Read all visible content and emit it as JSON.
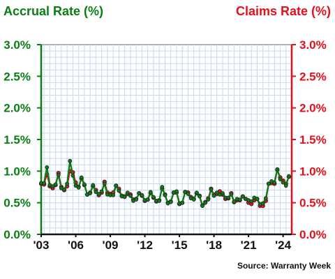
{
  "colors": {
    "accrual": "#0b7d15",
    "claims": "#e4101b",
    "grid": "#c7d8f0",
    "plot_border": "#666666",
    "text_dark": "#111111"
  },
  "chart_data": {
    "type": "line",
    "title_left": "Accrual Rate (%)",
    "title_right": "Claims Rate (%)",
    "source": "Source: Warranty Week",
    "ylim": [
      0,
      3.0
    ],
    "xlim": [
      2003,
      2024.75
    ],
    "grid": true,
    "legend": "none",
    "y_ticks_left": [
      "0.0%",
      "0.5%",
      "1.0%",
      "1.5%",
      "2.0%",
      "2.5%",
      "3.0%"
    ],
    "y_ticks_right": [
      "0.0%",
      "0.5%",
      "1.0%",
      "1.5%",
      "2.0%",
      "2.5%",
      "3.0%"
    ],
    "x_ticks": [
      "'03",
      "'06",
      "'09",
      "'12",
      "'15",
      "'18",
      "'21",
      "'24"
    ],
    "series": [
      {
        "key": "accrual",
        "color_key": "accrual",
        "x": [
          2003.0,
          2003.25,
          2003.5,
          2003.75,
          2004.0,
          2004.25,
          2004.5,
          2004.75,
          2005.0,
          2005.25,
          2005.5,
          2005.75,
          2006.0,
          2006.25,
          2006.5,
          2006.75,
          2007.0,
          2007.25,
          2007.5,
          2007.75,
          2008.0,
          2008.25,
          2008.5,
          2008.75,
          2009.0,
          2009.25,
          2009.5,
          2009.75,
          2010.0,
          2010.25,
          2010.5,
          2010.75,
          2011.0,
          2011.25,
          2011.5,
          2011.75,
          2012.0,
          2012.25,
          2012.5,
          2012.75,
          2013.0,
          2013.25,
          2013.5,
          2013.75,
          2014.0,
          2014.25,
          2014.5,
          2014.75,
          2015.0,
          2015.25,
          2015.5,
          2015.75,
          2016.0,
          2016.25,
          2016.5,
          2016.75,
          2017.0,
          2017.25,
          2017.5,
          2017.75,
          2018.0,
          2018.25,
          2018.5,
          2018.75,
          2019.0,
          2019.25,
          2019.5,
          2019.75,
          2020.0,
          2020.25,
          2020.5,
          2020.75,
          2021.0,
          2021.25,
          2021.5,
          2021.75,
          2022.0,
          2022.25,
          2022.5,
          2022.75,
          2023.0,
          2023.25,
          2023.5,
          2023.75,
          2024.0,
          2024.25,
          2024.5
        ],
        "values": [
          0.81,
          0.81,
          1.06,
          0.78,
          0.76,
          0.79,
          0.94,
          0.73,
          0.71,
          0.8,
          1.16,
          0.93,
          0.77,
          0.74,
          0.9,
          0.79,
          0.63,
          0.65,
          0.78,
          0.67,
          0.64,
          0.68,
          0.8,
          0.63,
          0.62,
          0.62,
          0.77,
          0.69,
          0.6,
          0.59,
          0.66,
          0.61,
          0.53,
          0.55,
          0.65,
          0.62,
          0.54,
          0.55,
          0.67,
          0.59,
          0.53,
          0.53,
          0.75,
          0.62,
          0.49,
          0.51,
          0.66,
          0.68,
          0.49,
          0.5,
          0.67,
          0.64,
          0.57,
          0.55,
          0.66,
          0.6,
          0.45,
          0.5,
          0.55,
          0.71,
          0.61,
          0.66,
          0.63,
          0.65,
          0.58,
          0.58,
          0.63,
          0.52,
          0.56,
          0.55,
          0.6,
          0.56,
          0.54,
          0.52,
          0.58,
          0.56,
          0.48,
          0.49,
          0.57,
          0.8,
          0.84,
          0.82,
          1.03,
          0.87,
          0.82,
          0.77,
          0.92
        ]
      },
      {
        "key": "claims",
        "color_key": "claims",
        "x": [
          2003.0,
          2003.25,
          2003.5,
          2003.75,
          2004.0,
          2004.25,
          2004.5,
          2004.75,
          2005.0,
          2005.25,
          2005.5,
          2005.75,
          2006.0,
          2006.25,
          2006.5,
          2006.75,
          2007.0,
          2007.25,
          2007.5,
          2007.75,
          2008.0,
          2008.25,
          2008.5,
          2008.75,
          2009.0,
          2009.25,
          2009.5,
          2009.75,
          2010.0,
          2010.25,
          2010.5,
          2010.75,
          2011.0,
          2011.25,
          2011.5,
          2011.75,
          2012.0,
          2012.25,
          2012.5,
          2012.75,
          2013.0,
          2013.25,
          2013.5,
          2013.75,
          2014.0,
          2014.25,
          2014.5,
          2014.75,
          2015.0,
          2015.25,
          2015.5,
          2015.75,
          2016.0,
          2016.25,
          2016.5,
          2016.75,
          2017.0,
          2017.25,
          2017.5,
          2017.75,
          2018.0,
          2018.25,
          2018.5,
          2018.75,
          2019.0,
          2019.25,
          2019.5,
          2019.75,
          2020.0,
          2020.25,
          2020.5,
          2020.75,
          2021.0,
          2021.25,
          2021.5,
          2021.75,
          2022.0,
          2022.25,
          2022.5,
          2022.75,
          2023.0,
          2023.25,
          2023.5,
          2023.75,
          2024.0,
          2024.25,
          2024.5
        ],
        "values": [
          0.8,
          0.79,
          0.95,
          0.76,
          0.73,
          0.78,
          0.97,
          0.75,
          0.7,
          0.76,
          1.0,
          0.98,
          0.82,
          0.75,
          0.88,
          0.78,
          0.63,
          0.66,
          0.76,
          0.7,
          0.62,
          0.66,
          0.83,
          0.66,
          0.64,
          0.66,
          0.77,
          0.72,
          0.61,
          0.6,
          0.64,
          0.63,
          0.55,
          0.56,
          0.65,
          0.61,
          0.53,
          0.55,
          0.65,
          0.58,
          0.52,
          0.54,
          0.72,
          0.63,
          0.5,
          0.52,
          0.66,
          0.66,
          0.48,
          0.5,
          0.67,
          0.66,
          0.59,
          0.56,
          0.65,
          0.61,
          0.46,
          0.51,
          0.57,
          0.72,
          0.63,
          0.64,
          0.68,
          0.63,
          0.56,
          0.57,
          0.65,
          0.51,
          0.54,
          0.54,
          0.6,
          0.56,
          0.5,
          0.48,
          0.54,
          0.56,
          0.45,
          0.45,
          0.53,
          0.8,
          0.81,
          0.8,
          1.02,
          0.9,
          0.85,
          0.8,
          0.91
        ]
      }
    ]
  }
}
